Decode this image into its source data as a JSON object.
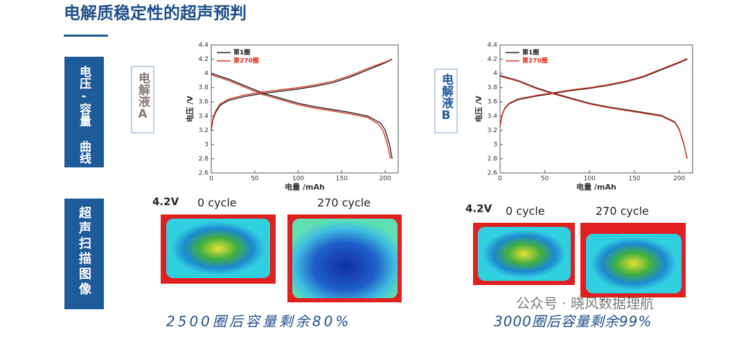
{
  "header": {
    "title": "电解质稳定性的超声预判"
  },
  "side_labels": [
    "电压-容量 曲线",
    "超声扫描图像"
  ],
  "electrolyte_labels": [
    "电解液A",
    "电解液B"
  ],
  "chart_data": [
    {
      "type": "line",
      "xlabel": "电量 /mAh",
      "ylabel": "电压 /V",
      "xlim": [
        0,
        215
      ],
      "xticks": [
        0,
        50,
        100,
        150,
        200
      ],
      "ylim": [
        2.6,
        4.4
      ],
      "yticks": [
        2.6,
        2.8,
        3,
        3.2,
        3.4,
        3.6,
        3.8,
        4,
        4.2,
        4.4
      ],
      "series": [
        {
          "name": "第1圈",
          "color": "#222222",
          "x": [
            0,
            2,
            5,
            10,
            20,
            40,
            60,
            80,
            100,
            120,
            140,
            160,
            180,
            200,
            208,
            null,
            0,
            20,
            40,
            60,
            80,
            100,
            120,
            140,
            160,
            180,
            195,
            200,
            205,
            208
          ],
          "values": [
            3.2,
            3.35,
            3.45,
            3.55,
            3.62,
            3.68,
            3.72,
            3.75,
            3.78,
            3.82,
            3.87,
            3.95,
            4.05,
            4.15,
            4.2,
            null,
            4.0,
            3.92,
            3.82,
            3.72,
            3.65,
            3.58,
            3.53,
            3.49,
            3.45,
            3.4,
            3.3,
            3.2,
            3.0,
            2.8
          ]
        },
        {
          "name": "第270圈",
          "color": "#e03020",
          "x": [
            0,
            2,
            5,
            10,
            20,
            40,
            60,
            80,
            100,
            120,
            140,
            160,
            180,
            200,
            207,
            null,
            0,
            20,
            40,
            60,
            80,
            100,
            120,
            140,
            160,
            180,
            193,
            198,
            203,
            206
          ],
          "values": [
            3.22,
            3.37,
            3.47,
            3.57,
            3.64,
            3.7,
            3.74,
            3.77,
            3.8,
            3.84,
            3.89,
            3.97,
            4.07,
            4.16,
            4.2,
            null,
            3.98,
            3.9,
            3.8,
            3.7,
            3.63,
            3.56,
            3.51,
            3.47,
            3.43,
            3.38,
            3.28,
            3.18,
            2.98,
            2.8
          ]
        }
      ]
    },
    {
      "type": "line",
      "xlabel": "电量 /mAh",
      "ylabel": "电压 /V",
      "xlim": [
        0,
        215
      ],
      "xticks": [
        0,
        50,
        100,
        150,
        200
      ],
      "ylim": [
        2.6,
        4.4
      ],
      "yticks": [
        2.6,
        2.8,
        3,
        3.2,
        3.4,
        3.6,
        3.8,
        4,
        4.2,
        4.4
      ],
      "series": [
        {
          "name": "第1圈",
          "color": "#222222",
          "x": [
            0,
            2,
            5,
            10,
            20,
            40,
            60,
            80,
            100,
            120,
            140,
            160,
            180,
            200,
            209,
            null,
            0,
            20,
            40,
            60,
            80,
            100,
            120,
            140,
            160,
            180,
            195,
            200,
            205,
            209
          ],
          "values": [
            3.25,
            3.4,
            3.5,
            3.57,
            3.63,
            3.68,
            3.72,
            3.76,
            3.79,
            3.83,
            3.88,
            3.95,
            4.05,
            4.15,
            4.2,
            null,
            3.97,
            3.9,
            3.8,
            3.72,
            3.65,
            3.58,
            3.53,
            3.49,
            3.45,
            3.41,
            3.32,
            3.22,
            3.02,
            2.8
          ]
        },
        {
          "name": "第270圈",
          "color": "#e03020",
          "x": [
            0,
            2,
            5,
            10,
            20,
            40,
            60,
            80,
            100,
            120,
            140,
            160,
            180,
            200,
            209,
            null,
            0,
            20,
            40,
            60,
            80,
            100,
            120,
            140,
            160,
            180,
            195,
            200,
            205,
            209
          ],
          "values": [
            3.26,
            3.41,
            3.51,
            3.58,
            3.64,
            3.69,
            3.73,
            3.77,
            3.8,
            3.84,
            3.89,
            3.96,
            4.06,
            4.16,
            4.21,
            null,
            3.96,
            3.89,
            3.79,
            3.71,
            3.64,
            3.57,
            3.52,
            3.48,
            3.44,
            3.4,
            3.31,
            3.21,
            3.01,
            2.8
          ]
        }
      ]
    }
  ],
  "scans": [
    {
      "voltage": "4.2V",
      "labels": [
        "0 cycle",
        "270 cycle"
      ]
    },
    {
      "voltage": "4.2V",
      "labels": [
        "0 cycle",
        "270 cycle"
      ]
    }
  ],
  "captions": [
    "2500圈后容量剩余80%",
    "3000圈后容量剩余99%"
  ],
  "watermark": "公众号 · 晓风数据理航"
}
